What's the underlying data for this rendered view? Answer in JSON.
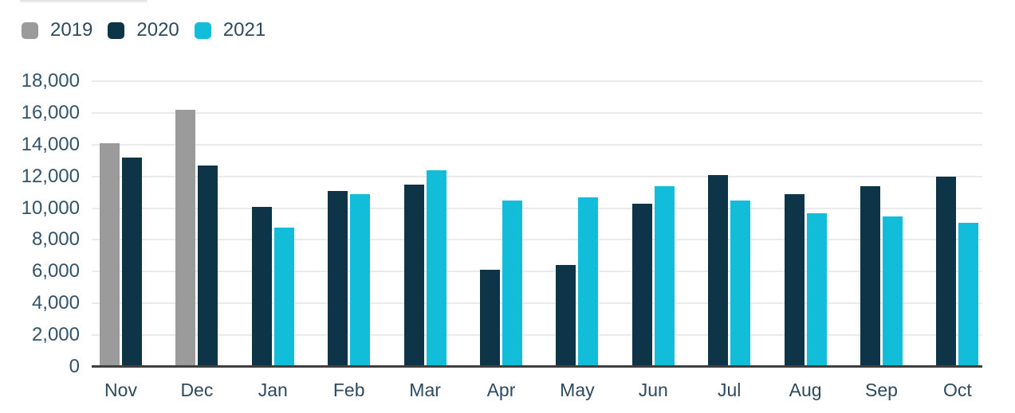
{
  "chart_data": {
    "type": "bar",
    "categories": [
      "Nov",
      "Dec",
      "Jan",
      "Feb",
      "Mar",
      "Apr",
      "May",
      "Jun",
      "Jul",
      "Aug",
      "Sep",
      "Oct"
    ],
    "series": [
      {
        "name": "2019",
        "color": "#9b9b9b",
        "values": [
          14100,
          16200,
          null,
          null,
          null,
          null,
          null,
          null,
          null,
          null,
          null,
          null
        ]
      },
      {
        "name": "2020",
        "color": "#0d3447",
        "values": [
          13200,
          12700,
          10100,
          11100,
          11500,
          6100,
          6400,
          10300,
          12100,
          10900,
          11400,
          12000
        ]
      },
      {
        "name": "2021",
        "color": "#12bdd9",
        "values": [
          null,
          null,
          8800,
          10900,
          12400,
          10500,
          10700,
          11400,
          10500,
          9700,
          9500,
          9100
        ]
      }
    ],
    "title": "",
    "xlabel": "",
    "ylabel": "",
    "ylim": [
      0,
      18000
    ],
    "ytick_step": 2000,
    "ytick_labels": [
      "0",
      "2,000",
      "4,000",
      "6,000",
      "8,000",
      "10,000",
      "12,000",
      "14,000",
      "16,000",
      "18,000"
    ],
    "grid": "horizontal",
    "legend_position": "top-left"
  },
  "colors": {
    "axis_text": "#33536a",
    "legend_text": "#2d4a5e",
    "gridline": "#eaeaea",
    "axis_line": "#3f3f3f",
    "background": "#ffffff"
  }
}
